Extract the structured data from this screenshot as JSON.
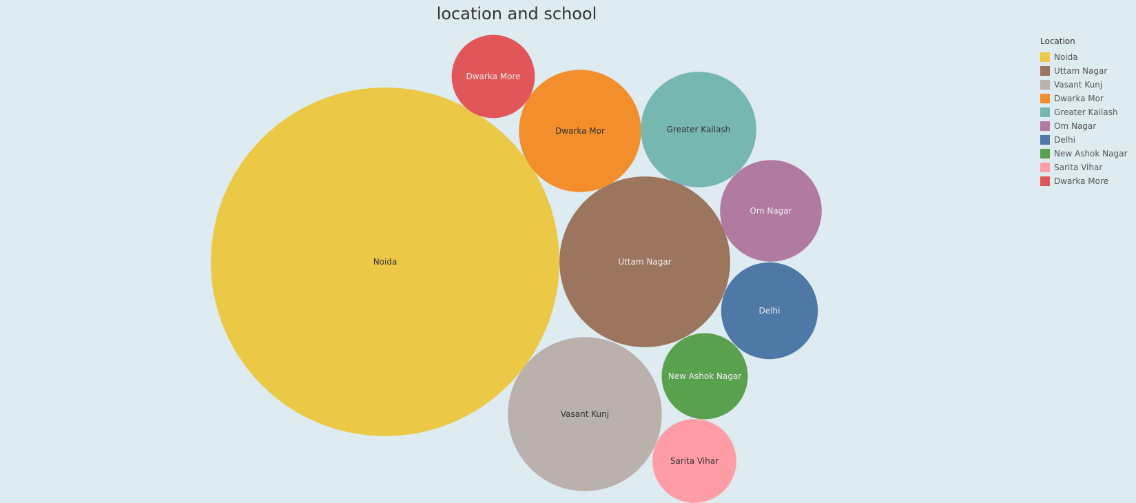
{
  "chart_data": {
    "type": "bubble",
    "title": "location and school",
    "legend": {
      "title": "Location",
      "position": "top-right"
    },
    "series": [
      {
        "name": "Noida",
        "color": "#ebc947",
        "label_color": "#333333",
        "value": 100
      },
      {
        "name": "Uttam Nagar",
        "color": "#9c755f",
        "label_color": "#eeeeee",
        "value": 24
      },
      {
        "name": "Vasant Kunj",
        "color": "#bab0ac",
        "label_color": "#333333",
        "value": 19.5
      },
      {
        "name": "Dwarka Mor",
        "color": "#f28e2b",
        "label_color": "#333333",
        "value": 12.3
      },
      {
        "name": "Greater Kailash",
        "color": "#76b7b2",
        "label_color": "#333333",
        "value": 11
      },
      {
        "name": "Om Nagar",
        "color": "#b07aa1",
        "label_color": "#eeeeee",
        "value": 8.5
      },
      {
        "name": "Delhi",
        "color": "#4e79a7",
        "label_color": "#eeeeee",
        "value": 7.7
      },
      {
        "name": "New Ashok Nagar",
        "color": "#59a14f",
        "label_color": "#eeeeee",
        "value": 6.1
      },
      {
        "name": "Sarita Vihar",
        "color": "#ff9da7",
        "label_color": "#333333",
        "value": 5.8
      },
      {
        "name": "Dwarka More",
        "color": "#e15759",
        "label_color": "#eeeeee",
        "value": 5.7
      }
    ]
  }
}
